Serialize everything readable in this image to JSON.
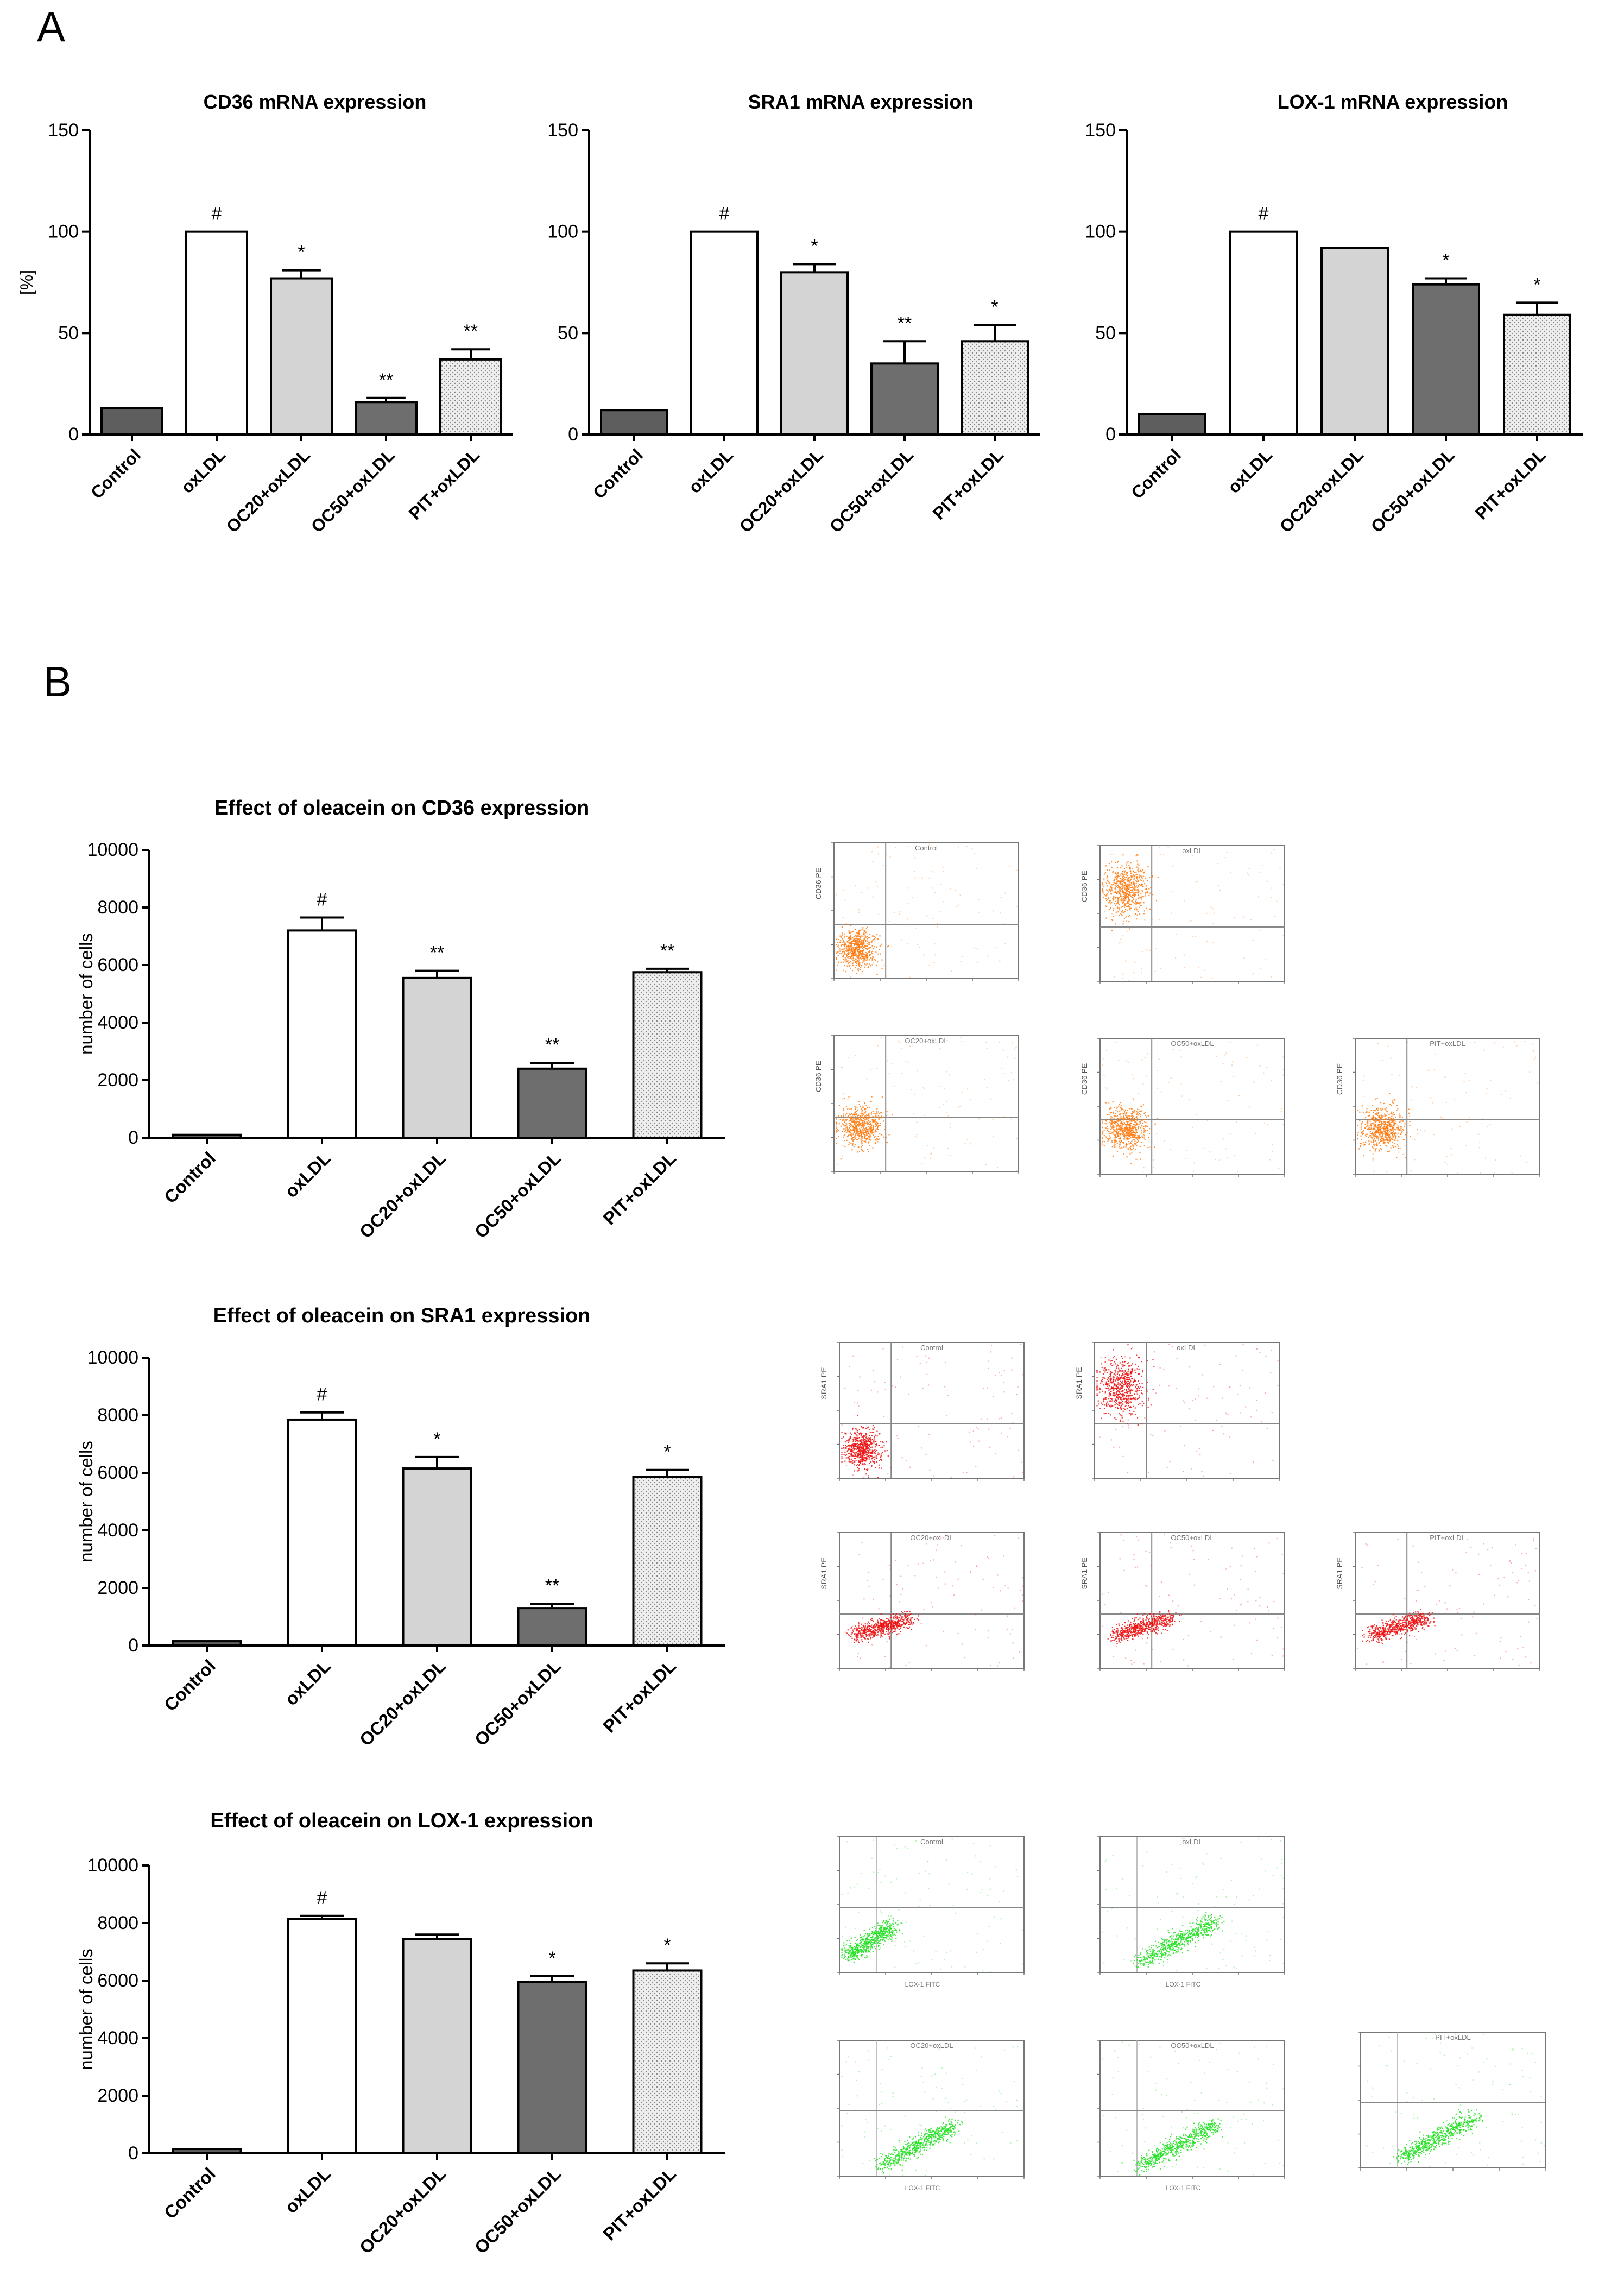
{
  "panels": {
    "a": "A",
    "b": "B"
  },
  "colors": {
    "white": "#ffffff",
    "light": "#d4d4d4",
    "dark": "#6e6e6e",
    "control": "#5e5e5e",
    "dotted_bg": "#eeeeee",
    "dotted_fg": "#888888",
    "axis": "#000000",
    "flow_orange": "#ff7a10",
    "flow_red": "#ee1111",
    "flow_green": "#22e022"
  },
  "chart_data": [
    {
      "id": "cd36_mrna",
      "type": "bar",
      "title": "CD36 mRNA expression",
      "ylabel": "[%]",
      "ylim": [
        0,
        150
      ],
      "yticks": [
        "0",
        "50",
        "100",
        "150"
      ],
      "categories": [
        "Control",
        "oxLDL",
        "OC20+oxLDL",
        "OC50+oxLDL",
        "PIT+oxLDL"
      ],
      "values": [
        13,
        100,
        77,
        16,
        37
      ],
      "errors": [
        0,
        0,
        4,
        2,
        5
      ],
      "fills": [
        "control",
        "white",
        "light",
        "dark",
        "dotted"
      ],
      "annotations": [
        "",
        "#",
        "*",
        "**",
        "**"
      ]
    },
    {
      "id": "sra1_mrna",
      "type": "bar",
      "title": "SRA1 mRNA expression",
      "ylabel": "",
      "ylim": [
        0,
        150
      ],
      "yticks": [
        "0",
        "50",
        "100",
        "150"
      ],
      "categories": [
        "Control",
        "oxLDL",
        "OC20+oxLDL",
        "OC50+oxLDL",
        "PIT+oxLDL"
      ],
      "values": [
        12,
        100,
        80,
        35,
        46
      ],
      "errors": [
        0,
        0,
        4,
        11,
        8
      ],
      "fills": [
        "control",
        "white",
        "light",
        "dark",
        "dotted"
      ],
      "annotations": [
        "",
        "#",
        "*",
        "**",
        "*"
      ]
    },
    {
      "id": "lox1_mrna",
      "type": "bar",
      "title": "LOX-1 mRNA expression",
      "ylabel": "",
      "ylim": [
        0,
        150
      ],
      "yticks": [
        "0",
        "50",
        "100",
        "150"
      ],
      "categories": [
        "Control",
        "oxLDL",
        "OC20+oxLDL",
        "OC50+oxLDL",
        "PIT+oxLDL"
      ],
      "values": [
        10,
        100,
        92,
        74,
        59
      ],
      "errors": [
        0,
        0,
        0,
        3,
        6
      ],
      "fills": [
        "control",
        "white",
        "light",
        "dark",
        "dotted"
      ],
      "annotations": [
        "",
        "#",
        "",
        "*",
        "*"
      ]
    },
    {
      "id": "cd36_cells",
      "type": "bar",
      "title": "Effect of oleacein on CD36 expression",
      "ylabel": "number of cells",
      "ylim": [
        0,
        10000
      ],
      "yticks": [
        "0",
        "2000",
        "4000",
        "6000",
        "8000",
        "10000"
      ],
      "categories": [
        "Control",
        "oxLDL",
        "OC20+oxLDL",
        "OC50+oxLDL",
        "PIT+oxLDL"
      ],
      "values": [
        100,
        7200,
        5550,
        2400,
        5750
      ],
      "errors": [
        0,
        450,
        250,
        200,
        120
      ],
      "fills": [
        "control",
        "white",
        "light",
        "dark",
        "dotted"
      ],
      "annotations": [
        "",
        "#",
        "**",
        "**",
        "**"
      ]
    },
    {
      "id": "sra1_cells",
      "type": "bar",
      "title": "Effect of oleacein on SRA1 expression",
      "ylabel": "number of cells",
      "ylim": [
        0,
        10000
      ],
      "yticks": [
        "0",
        "2000",
        "4000",
        "6000",
        "8000",
        "10000"
      ],
      "categories": [
        "Control",
        "oxLDL",
        "OC20+oxLDL",
        "OC50+oxLDL",
        "PIT+oxLDL"
      ],
      "values": [
        150,
        7850,
        6150,
        1300,
        5850
      ],
      "errors": [
        0,
        250,
        400,
        150,
        250
      ],
      "fills": [
        "control",
        "white",
        "light",
        "dark",
        "dotted"
      ],
      "annotations": [
        "",
        "#",
        "*",
        "**",
        "*"
      ]
    },
    {
      "id": "lox1_cells",
      "type": "bar",
      "title": "Effect of oleacein on LOX-1 expression",
      "ylabel": "number of cells",
      "ylim": [
        0,
        10000
      ],
      "yticks": [
        "0",
        "2000",
        "4000",
        "6000",
        "8000",
        "10000"
      ],
      "categories": [
        "Control",
        "oxLDL",
        "OC20+oxLDL",
        "OC50+oxLDL",
        "PIT+oxLDL"
      ],
      "values": [
        150,
        8150,
        7450,
        5950,
        6350
      ],
      "errors": [
        0,
        100,
        150,
        200,
        250
      ],
      "fills": [
        "control",
        "white",
        "light",
        "dark",
        "dotted"
      ],
      "annotations": [
        "",
        "#",
        "",
        "*",
        "*"
      ]
    }
  ],
  "flow_panels": [
    {
      "group": "cd36",
      "title": "Control",
      "ylabel": "CD36 PE",
      "xlabel": "",
      "color": "flow_orange",
      "cluster": "low"
    },
    {
      "group": "cd36",
      "title": "oxLDL",
      "ylabel": "CD36 PE",
      "xlabel": "",
      "color": "flow_orange",
      "cluster": "high"
    },
    {
      "group": "cd36",
      "title": "OC20+oxLDL",
      "ylabel": "CD36 PE",
      "xlabel": "",
      "color": "flow_orange",
      "cluster": "mid"
    },
    {
      "group": "cd36",
      "title": "OC50+oxLDL",
      "ylabel": "CD36 PE",
      "xlabel": "",
      "color": "flow_orange",
      "cluster": "mid"
    },
    {
      "group": "cd36",
      "title": "PIT+oxLDL",
      "ylabel": "CD36 PE",
      "xlabel": "",
      "color": "flow_orange",
      "cluster": "mid"
    },
    {
      "group": "sra1",
      "title": "Control",
      "ylabel": "SRA1 PE",
      "xlabel": "",
      "color": "flow_red",
      "cluster": "low"
    },
    {
      "group": "sra1",
      "title": "oxLDL",
      "ylabel": "SRA1 PE",
      "xlabel": "",
      "color": "flow_red",
      "cluster": "high"
    },
    {
      "group": "sra1",
      "title": "OC20+oxLDL",
      "ylabel": "SRA1 PE",
      "xlabel": "",
      "color": "flow_red",
      "cluster": "diag"
    },
    {
      "group": "sra1",
      "title": "OC50+oxLDL",
      "ylabel": "SRA1 PE",
      "xlabel": "",
      "color": "flow_red",
      "cluster": "diag"
    },
    {
      "group": "sra1",
      "title": "PIT+oxLDL",
      "ylabel": "SRA1 PE",
      "xlabel": "",
      "color": "flow_red",
      "cluster": "diag"
    },
    {
      "group": "lox1",
      "title": "Control",
      "ylabel": "",
      "xlabel": "LOX-1 FITC",
      "color": "flow_green",
      "cluster": "gdiag"
    },
    {
      "group": "lox1",
      "title": "oxLDL",
      "ylabel": "",
      "xlabel": "LOX-1 FITC",
      "color": "flow_green",
      "cluster": "gdiag2"
    },
    {
      "group": "lox1",
      "title": "OC20+oxLDL",
      "ylabel": "",
      "xlabel": "LOX-1 FITC",
      "color": "flow_green",
      "cluster": "gdiag2"
    },
    {
      "group": "lox1",
      "title": "OC50+oxLDL",
      "ylabel": "",
      "xlabel": "LOX-1 FITC",
      "color": "flow_green",
      "cluster": "gdiag2"
    },
    {
      "group": "lox1",
      "title": "PIT+oxLDL",
      "ylabel": "",
      "xlabel": "",
      "color": "flow_green",
      "cluster": "gdiag2"
    }
  ]
}
